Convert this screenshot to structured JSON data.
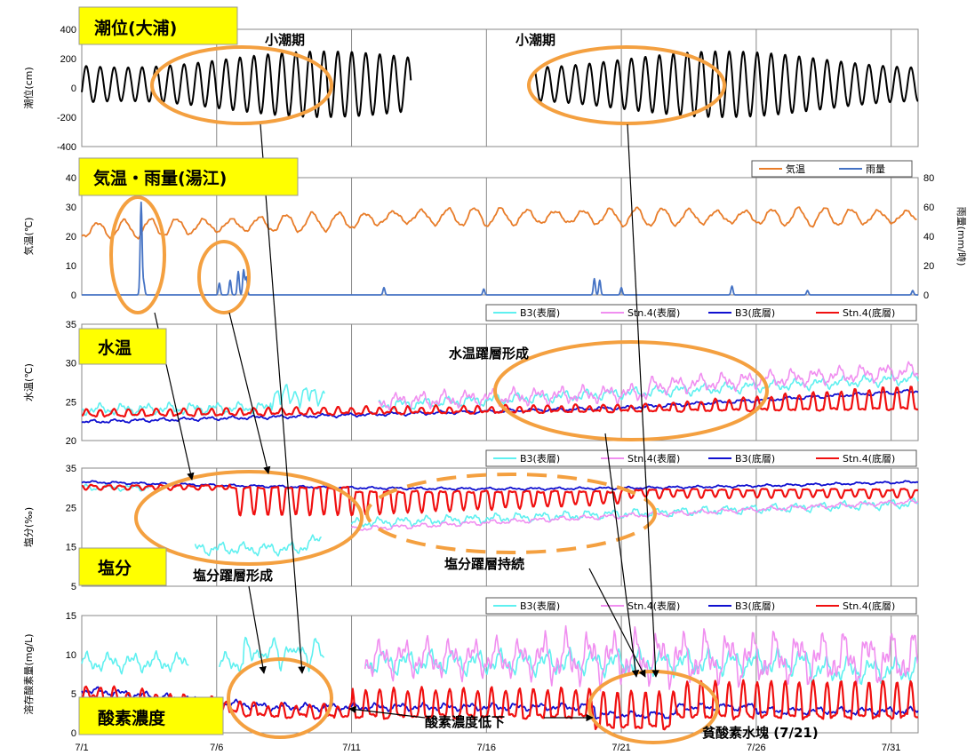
{
  "x_axis": {
    "day_labels": [
      "7/1",
      "7/6",
      "7/11",
      "7/16",
      "7/21",
      "7/26",
      "7/31"
    ],
    "day_values": [
      1,
      6,
      11,
      16,
      21,
      26,
      31
    ]
  },
  "colors": {
    "tide": "#000000",
    "air_temp": "#e87d2a",
    "rain": "#4472c4",
    "b3_surface": "#5ff0f0",
    "stn4_surface": "#f08ff0",
    "b3_bottom": "#1010d0",
    "stn4_bottom": "#f01010",
    "highlight": "#f4a040",
    "title_box": "#ffff00"
  },
  "legends": {
    "weather": [
      "気温",
      "雨量"
    ],
    "water": [
      "B3(表層)",
      "Stn.4(表層)",
      "B3(底層)",
      "Stn.4(底層)"
    ]
  },
  "annotations": {
    "neap1": "小潮期",
    "neap2": "小潮期",
    "thermo": "水温躍層形成",
    "halo_form": "塩分躍層形成",
    "halo_keep": "塩分躍層持続",
    "do_drop": "酸素濃度低下",
    "hypoxic": "貧酸素水塊 (7/21)"
  },
  "chart_data": [
    {
      "type": "line",
      "title": "潮位(大浦)",
      "ylabel": "潮位(cm)",
      "xlim": [
        1,
        32
      ],
      "ylim": [
        -400,
        400
      ],
      "yticks": [
        -400,
        -200,
        0,
        200,
        400
      ],
      "series": [
        {
          "values_desc": "semidiurnal oscillation",
          "segments": [
            [
              1,
              13.2
            ],
            [
              17.8,
              32
            ]
          ],
          "mean": 25,
          "amplitude_spring": 225,
          "amplitude_neap": 115
        }
      ]
    },
    {
      "type": "line",
      "title": "気温・雨量(湯江)",
      "ylabel": "気温(℃)",
      "ylabel_right": "雨量(mm/時)",
      "xlim": [
        1,
        32
      ],
      "ylim": [
        0,
        40
      ],
      "yticks": [
        0,
        10,
        20,
        30,
        40
      ],
      "ylim_right": [
        0,
        80
      ],
      "yticks_right": [
        0,
        20,
        40,
        60,
        80
      ],
      "series": [
        {
          "name": "気温",
          "mean": 26.5,
          "diurnal_range": 5
        },
        {
          "name": "雨量",
          "peaks": [
            [
              3.2,
              63
            ],
            [
              3.3,
              8
            ],
            [
              6.1,
              8
            ],
            [
              6.5,
              10
            ],
            [
              6.8,
              16
            ],
            [
              7.0,
              17
            ],
            [
              7.1,
              12
            ],
            [
              12.2,
              5
            ],
            [
              15.9,
              4
            ],
            [
              20.0,
              11
            ],
            [
              20.2,
              10
            ],
            [
              21.0,
              5
            ],
            [
              25.1,
              6
            ],
            [
              27.9,
              3
            ],
            [
              31.8,
              3
            ]
          ]
        }
      ]
    },
    {
      "type": "line",
      "title": "水温",
      "ylabel": "水温(℃)",
      "xlim": [
        1,
        32
      ],
      "ylim": [
        20,
        35
      ],
      "yticks": [
        20,
        25,
        30,
        35
      ],
      "series": [
        {
          "name": "B3(表層)",
          "start": 24.2,
          "end": 28.0
        },
        {
          "name": "Stn.4(表層)",
          "start": 25.0,
          "end": 28.5
        },
        {
          "name": "B3(底層)",
          "start": 22.4,
          "end": 25.3
        },
        {
          "name": "Stn.4(底層)",
          "start": 23.0,
          "end": 26.0
        }
      ]
    },
    {
      "type": "line",
      "title": "塩分",
      "ylabel": "塩分(‰)",
      "xlim": [
        1,
        32
      ],
      "ylim": [
        5,
        35
      ],
      "yticks": [
        5,
        15,
        25,
        35
      ],
      "series": [
        {
          "name": "B3(表層)",
          "start": 30,
          "min": 13,
          "end": 27
        },
        {
          "name": "Stn.4(表層)",
          "start": 30,
          "min": 17,
          "end": 27
        },
        {
          "name": "B3(底層)",
          "start": 31.5,
          "end": 30.5
        },
        {
          "name": "Stn.4(底層)",
          "start": 31,
          "min": 17,
          "end": 30
        }
      ]
    },
    {
      "type": "line",
      "title": "酸素濃度",
      "ylabel": "溶存酸素量(mg/L)",
      "xlim": [
        1,
        32
      ],
      "ylim": [
        0,
        15
      ],
      "yticks": [
        0,
        5,
        10,
        15
      ],
      "series": [
        {
          "name": "B3(表層)",
          "start": 9,
          "end": 8
        },
        {
          "name": "Stn.4(表層)",
          "start": 10,
          "end": 8
        },
        {
          "name": "B3(底層)",
          "start": 5.5,
          "end": 2.5
        },
        {
          "name": "Stn.4(底層)",
          "start": 5.5,
          "min": 0.5,
          "end": 3
        }
      ]
    }
  ]
}
